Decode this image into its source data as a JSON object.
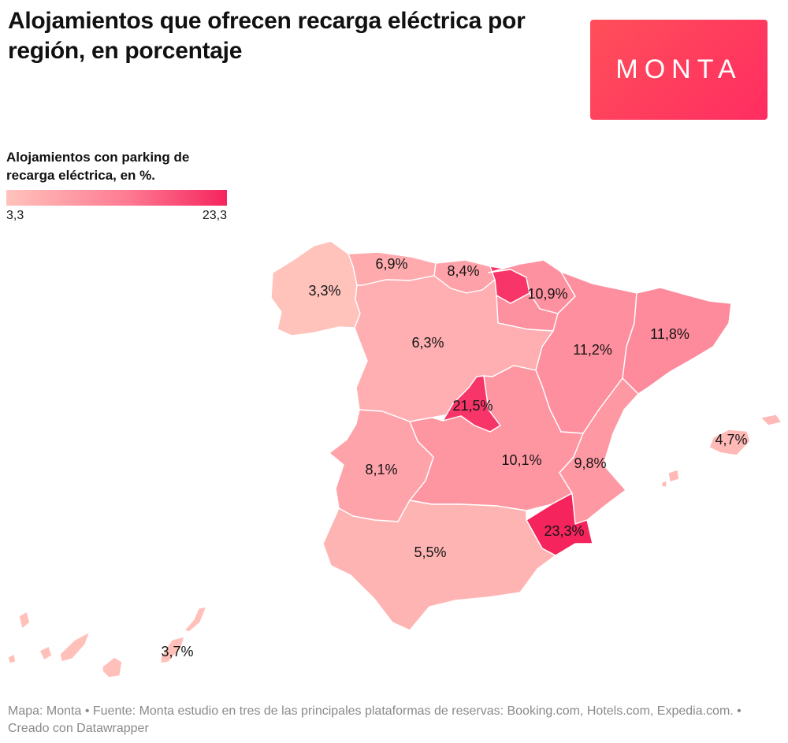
{
  "header": {
    "title": "Alojamientos que ofrecen recarga eléctrica por región, en porcentaje",
    "logo_text": "MONTA"
  },
  "legend": {
    "title": "Alojamientos con parking de recarga eléctrica, en %.",
    "min_label": "3,3",
    "max_label": "23,3",
    "min": 3.3,
    "max": 23.3,
    "colors": {
      "low": "#ffc3bc",
      "mid": "#fe7a92",
      "high": "#f5245d"
    }
  },
  "map": {
    "regions": [
      {
        "id": "galicia",
        "value": 3.3,
        "label": "3,3%"
      },
      {
        "id": "asturias",
        "value": 6.9,
        "label": "6,9%"
      },
      {
        "id": "cantabria",
        "value": 8.4,
        "label": "8,4%"
      },
      {
        "id": "pais-vasco",
        "value": 21.5,
        "label": ""
      },
      {
        "id": "navarra",
        "value": 10.9,
        "label": "10,9%"
      },
      {
        "id": "la-rioja",
        "value": 10.9,
        "label": ""
      },
      {
        "id": "castilla-y-leon",
        "value": 6.3,
        "label": "6,3%"
      },
      {
        "id": "aragon",
        "value": 11.2,
        "label": "11,2%"
      },
      {
        "id": "cataluna",
        "value": 11.8,
        "label": "11,8%"
      },
      {
        "id": "madrid",
        "value": 21.5,
        "label": "21,5%"
      },
      {
        "id": "extremadura",
        "value": 8.1,
        "label": "8,1%"
      },
      {
        "id": "castilla-la-mancha",
        "value": 10.1,
        "label": "10,1%"
      },
      {
        "id": "valencia",
        "value": 9.8,
        "label": "9,8%"
      },
      {
        "id": "murcia",
        "value": 23.3,
        "label": "23,3%"
      },
      {
        "id": "andalucia",
        "value": 5.5,
        "label": "5,5%"
      },
      {
        "id": "baleares",
        "value": 4.7,
        "label": "4,7%"
      },
      {
        "id": "canarias",
        "value": 3.7,
        "label": "3,7%"
      }
    ]
  },
  "footer": {
    "text": "Mapa: Monta • Fuente: Monta estudio en tres de las principales plataformas de reservas: Booking.com, Hotels.com, Expedia.com. • Creado con Datawrapper"
  }
}
